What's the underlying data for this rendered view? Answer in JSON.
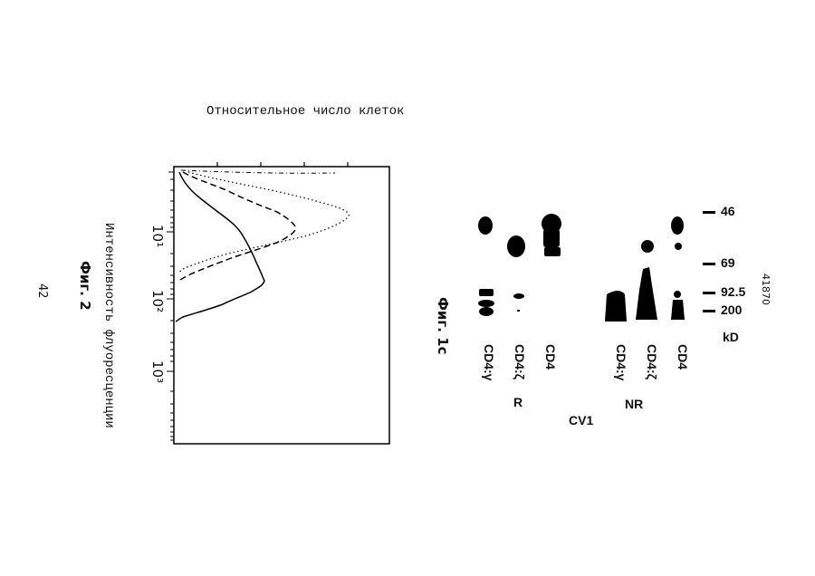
{
  "fig2": {
    "ylabel": "Относительное число клеток",
    "xlabel": "Интенсивность флуоресценции",
    "caption": "Фиг. 2",
    "page_number": "42",
    "tick_labels": [
      "10¹",
      "10²",
      "10³"
    ]
  },
  "fig1c": {
    "caption": "Фиг. 1c",
    "lanes": [
      "CD4:γ",
      "CD4:ζ",
      "CD4",
      "CD4:γ",
      "CD4:ζ",
      "CD4"
    ],
    "groups": [
      "R",
      "NR"
    ],
    "cell_line": "CV1",
    "markers": [
      "46",
      "69",
      "92.5",
      "200"
    ],
    "unit": "kD",
    "doc_number": "41870"
  },
  "colors": {
    "ink": "#000000",
    "paper": "#ffffff"
  }
}
